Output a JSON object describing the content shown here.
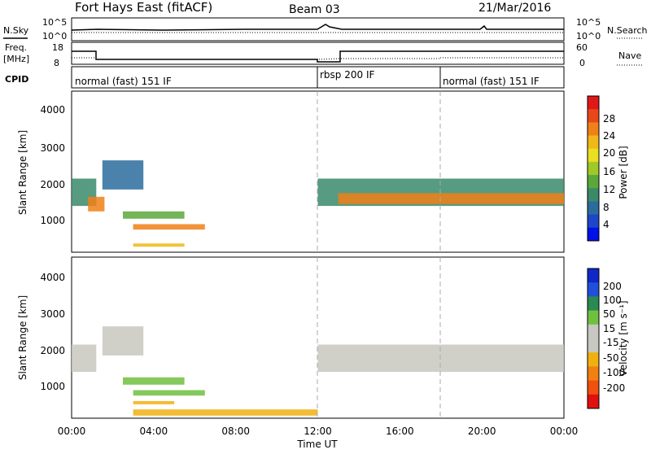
{
  "header": {
    "station": "Fort Hays East (fitACF)",
    "beam": "Beam 03",
    "date": "21/Mar/2016"
  },
  "noise_panel": {
    "left_label": "N.Sky",
    "left_ticks": [
      "10^5",
      "10^0"
    ],
    "right_label": "N.Search",
    "right_ticks": [
      "10^5",
      "10^0"
    ]
  },
  "freq_panel": {
    "left_label_1": "Freq.",
    "left_label_2": "[MHz]",
    "left_ticks": [
      "18",
      "8"
    ],
    "right_label": "Nave",
    "right_ticks": [
      "60",
      "0"
    ]
  },
  "cpid": {
    "label": "CPID",
    "segments": [
      {
        "label": "normal (fast) 151 IF",
        "start_hour": 0
      },
      {
        "label": "rbsp 200 IF",
        "start_hour": 12
      },
      {
        "label": "normal (fast) 151 IF",
        "start_hour": 18
      }
    ]
  },
  "chart_data": [
    {
      "type": "heatmap",
      "name": "power",
      "ylabel": "Slant Range [km]",
      "xlabel": "",
      "xlim": [
        0,
        24
      ],
      "ylim": [
        180,
        4600
      ],
      "yticks": [
        "1000",
        "2000",
        "3000",
        "4000"
      ],
      "colorbar_label": "Power [dB]",
      "colorbar_ticks": [
        "4",
        "8",
        "12",
        "16",
        "20",
        "24",
        "28"
      ],
      "colorbar_colors": [
        "#0010e8",
        "#1e46c8",
        "#2c6c9c",
        "#3a8a6a",
        "#5aa83a",
        "#a0c828",
        "#e8e020",
        "#f0b818",
        "#f08018",
        "#e84818",
        "#e01818"
      ],
      "regions": [
        {
          "x": [
            0.0,
            1.2
          ],
          "y": [
            1450,
            2200
          ],
          "color": "#3a8a6a"
        },
        {
          "x": [
            0.8,
            1.6
          ],
          "y": [
            1300,
            1700
          ],
          "color": "#f08018"
        },
        {
          "x": [
            1.5,
            3.5
          ],
          "y": [
            1900,
            2700
          ],
          "color": "#2c6c9c"
        },
        {
          "x": [
            2.5,
            5.5
          ],
          "y": [
            1100,
            1300
          ],
          "color": "#5aa83a"
        },
        {
          "x": [
            3.0,
            6.5
          ],
          "y": [
            800,
            950
          ],
          "color": "#f08018"
        },
        {
          "x": [
            3.0,
            5.5
          ],
          "y": [
            330,
            420
          ],
          "color": "#f0b818"
        },
        {
          "x": [
            12.0,
            24.0
          ],
          "y": [
            1450,
            2200
          ],
          "color": "#3a8a6a"
        },
        {
          "x": [
            13.0,
            24.0
          ],
          "y": [
            1500,
            1800
          ],
          "color": "#f08018"
        }
      ]
    },
    {
      "type": "heatmap",
      "name": "velocity",
      "ylabel": "Slant Range [km]",
      "xlabel": "Time UT",
      "xlim": [
        0,
        24
      ],
      "ylim": [
        180,
        4600
      ],
      "yticks": [
        "1000",
        "2000",
        "3000",
        "4000"
      ],
      "xticks": [
        "00:00",
        "04:00",
        "08:00",
        "12:00",
        "16:00",
        "20:00",
        "00:00"
      ],
      "colorbar_label": "Velocity [m s⁻¹]",
      "colorbar_ticks": [
        "200",
        "100",
        "50",
        "15",
        "-15",
        "-50",
        "-100",
        "-200"
      ],
      "colorbar_colors": [
        "#1028c8",
        "#2050d8",
        "#2a8a50",
        "#70c040",
        "#c8c8c0",
        "#c8c8c0",
        "#f0b010",
        "#f08010",
        "#f05010",
        "#e01010"
      ],
      "regions": [
        {
          "x": [
            0.0,
            1.2
          ],
          "y": [
            1450,
            2200
          ],
          "color": "#c8c8c0"
        },
        {
          "x": [
            1.5,
            3.5
          ],
          "y": [
            1900,
            2700
          ],
          "color": "#c8c8c0"
        },
        {
          "x": [
            2.5,
            5.5
          ],
          "y": [
            1100,
            1300
          ],
          "color": "#70c040"
        },
        {
          "x": [
            3.0,
            6.5
          ],
          "y": [
            800,
            950
          ],
          "color": "#70c040"
        },
        {
          "x": [
            3.0,
            5.0
          ],
          "y": [
            560,
            650
          ],
          "color": "#f0b010"
        },
        {
          "x": [
            3.0,
            12.0
          ],
          "y": [
            250,
            420
          ],
          "color": "#f0b010"
        },
        {
          "x": [
            12.0,
            24.0
          ],
          "y": [
            1450,
            2200
          ],
          "color": "#c8c8c0"
        }
      ]
    }
  ]
}
